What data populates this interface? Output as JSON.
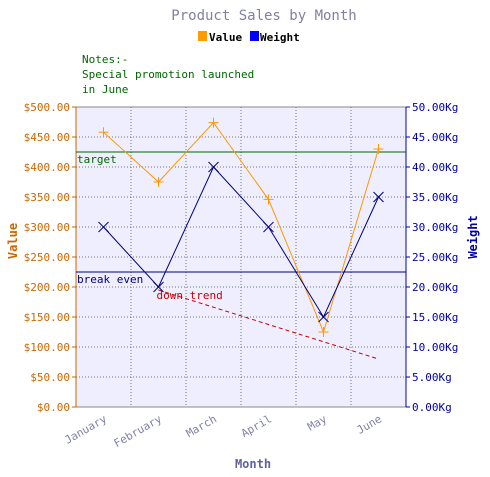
{
  "chart_data": {
    "type": "line",
    "title": "Product Sales by Month",
    "xlabel": "Month",
    "ylabel": "Value",
    "y2label": "Weight",
    "categories": [
      "January",
      "February",
      "March",
      "April",
      "May",
      "June"
    ],
    "y_ticks": [
      "$0.00",
      "$50.00",
      "$100.00",
      "$150.00",
      "$200.00",
      "$250.00",
      "$300.00",
      "$350.00",
      "$400.00",
      "$450.00",
      "$500.00"
    ],
    "y2_ticks": [
      "0.00Kg",
      "5.00Kg",
      "10.00Kg",
      "15.00Kg",
      "20.00Kg",
      "25.00Kg",
      "30.00Kg",
      "35.00Kg",
      "40.00Kg",
      "45.00Kg",
      "50.00Kg"
    ],
    "ylim": [
      0,
      500
    ],
    "y2lim": [
      0,
      50
    ],
    "grid": true,
    "legend_position": "top-center",
    "series": [
      {
        "name": "Value",
        "axis": "left",
        "color": "#ff9900",
        "marker": "+",
        "values": [
          458,
          375,
          474,
          346,
          125,
          430
        ]
      },
      {
        "name": "Weight",
        "axis": "right",
        "color": "#000080",
        "marker": "x",
        "values": [
          30,
          20,
          40,
          30,
          15,
          35
        ]
      }
    ],
    "reference_lines": [
      {
        "label": "target",
        "value": 425,
        "color": "#006600"
      },
      {
        "label": "break even",
        "value": 225,
        "color": "#000080"
      }
    ],
    "trend_line": {
      "label": "down trend",
      "color": "#cc0000",
      "from": {
        "x": "February",
        "y": 195
      },
      "to": {
        "x": "June",
        "y": 80
      }
    },
    "annotation": {
      "lines": [
        "Notes:-",
        "Special promotion launched",
        "in June"
      ],
      "color": "#006600"
    },
    "colors": {
      "title": "#8080a0",
      "plot_background": "#eeeeff",
      "left_axis": "#cc6600",
      "right_axis": "#0000aa",
      "x_tick_labels": "#8080aa",
      "x_label": "#6060a0"
    }
  }
}
